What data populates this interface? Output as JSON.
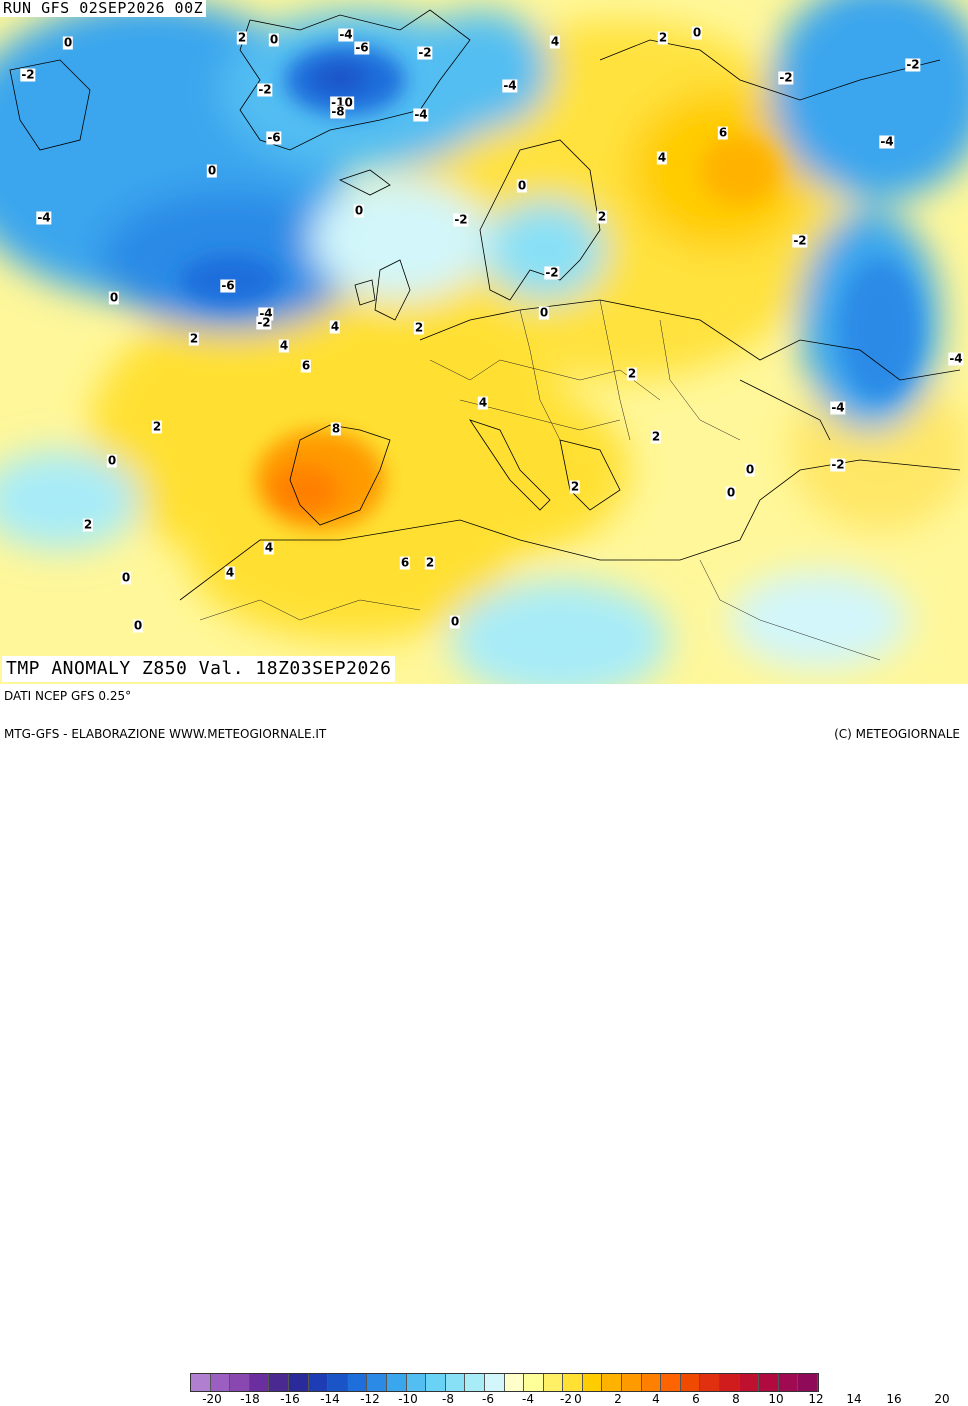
{
  "run_label": "RUN GFS 02SEP2026 00Z",
  "title": "TMP ANOMALY Z850 Val. 18Z03SEP2026",
  "footer": {
    "source": "DATI NCEP GFS 0.25°",
    "credit_left": "MTG-GFS - ELABORAZIONE WWW.METEOGIORNALE.IT",
    "credit_right": "(C) METEOGIORNALE"
  },
  "colorbar": {
    "colors": [
      "#b07fd0",
      "#9a5fc0",
      "#8848b0",
      "#6a2e9e",
      "#4a2a90",
      "#2a2a9a",
      "#1e3cb4",
      "#1a55c8",
      "#1e6edc",
      "#2a8ae6",
      "#3aa6ee",
      "#52bef2",
      "#6ad2f4",
      "#88e0f6",
      "#a8ecf8",
      "#d2f6fa",
      "#ffffcc",
      "#ffff99",
      "#fff066",
      "#ffe033",
      "#ffcc00",
      "#ffb300",
      "#ff9a00",
      "#ff8000",
      "#ff6400",
      "#f04a00",
      "#e03010",
      "#d01c1c",
      "#c01030",
      "#b00a40",
      "#a00a50",
      "#900a5a"
    ],
    "ticks": [
      "-20",
      "-18",
      "-16",
      "-14",
      "-12",
      "-10",
      "-8",
      "-6",
      "-4",
      "-2",
      "0",
      "2",
      "4",
      "6",
      "8",
      "10",
      "12",
      "14",
      "16",
      "20"
    ]
  },
  "contour_labels": [
    "0",
    "2",
    "0",
    "-4",
    "-6",
    "-2",
    "-2",
    "4",
    "2",
    "0",
    "-2",
    "-2",
    "-10",
    "-8",
    "-4",
    "-4",
    "-2",
    "-6",
    "6",
    "4",
    "0",
    "0",
    "-4",
    "-2",
    "2",
    "-4",
    "-2",
    "-6",
    "0",
    "-2",
    "0",
    "-4",
    "-2",
    "4",
    "2",
    "0",
    "4",
    "6",
    "2",
    "-4",
    "-4",
    "8",
    "2",
    "4",
    "2",
    "0",
    "2",
    "0",
    "-2",
    "0",
    "2",
    "4",
    "6",
    "2",
    "4",
    "2",
    "0",
    "0",
    "0"
  ]
}
